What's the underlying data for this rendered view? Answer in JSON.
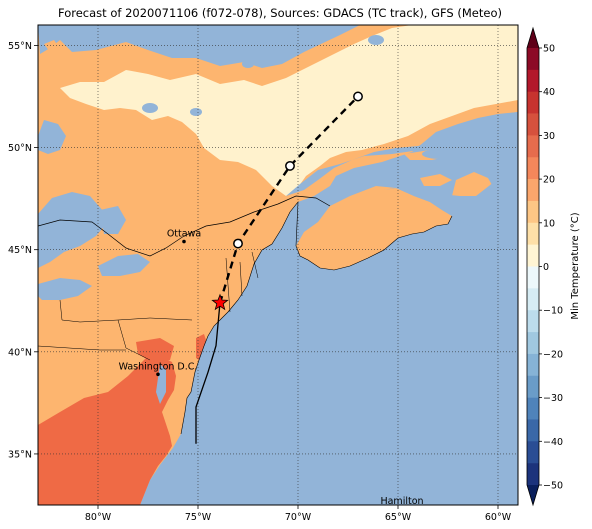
{
  "title": "Forecast of 2020071106 (f072-078), Sources: GDACS (TC track), GFS (Meteo)",
  "map": {
    "lon_range": [
      -83,
      -59
    ],
    "lat_range": [
      32.5,
      56
    ],
    "gridlines": true,
    "x_ticks": [
      {
        "lon": -80,
        "label": "80°W"
      },
      {
        "lon": -75,
        "label": "75°W"
      },
      {
        "lon": -70,
        "label": "70°W"
      },
      {
        "lon": -65,
        "label": "65°W"
      },
      {
        "lon": -60,
        "label": "60°W"
      }
    ],
    "y_ticks": [
      {
        "lat": 55,
        "label": "55°N"
      },
      {
        "lat": 50,
        "label": "50°N"
      },
      {
        "lat": 45,
        "label": "45°N"
      },
      {
        "lat": 40,
        "label": "40°N"
      },
      {
        "lat": 35,
        "label": "35°N"
      }
    ],
    "cities": [
      {
        "name": "Ottawa",
        "lon": -75.7,
        "lat": 45.4
      },
      {
        "name": "Washington D.C.",
        "lon": -77.0,
        "lat": 38.9
      },
      {
        "name": "Hamilton",
        "lon": -64.8,
        "lat": 32.3
      }
    ],
    "track_observed": [
      {
        "lon": -75.1,
        "lat": 35.5
      },
      {
        "lon": -75.1,
        "lat": 37.3
      },
      {
        "lon": -74.5,
        "lat": 39.0
      },
      {
        "lon": -74.1,
        "lat": 40.3
      },
      {
        "lon": -73.9,
        "lat": 42.4
      }
    ],
    "track_forecast": [
      {
        "lon": -73.9,
        "lat": 42.4
      },
      {
        "lon": -73.0,
        "lat": 45.3
      },
      {
        "lon": -70.4,
        "lat": 49.1
      },
      {
        "lon": -67.0,
        "lat": 52.5
      }
    ],
    "forecast_points": [
      {
        "lon": -73.0,
        "lat": 45.3
      },
      {
        "lon": -70.4,
        "lat": 49.1
      },
      {
        "lon": -67.0,
        "lat": 52.5
      }
    ],
    "current_position": {
      "lon": -73.9,
      "lat": 42.4
    },
    "colors": {
      "ocean": "#92b4d8",
      "zone_0_10": "#fff2cd",
      "zone_10_20": "#fdb56f",
      "zone_20_30": "#ef6a45",
      "zone_neg10_0": "#e3f1f7",
      "track": "#000000",
      "star": "#ff0000"
    }
  },
  "colorbar": {
    "label": "Min Temperature (°C)",
    "range": [
      -50,
      50
    ],
    "ticks": [
      {
        "value": 50,
        "label": "50"
      },
      {
        "value": 40,
        "label": "40"
      },
      {
        "value": 30,
        "label": "30"
      },
      {
        "value": 20,
        "label": "20"
      },
      {
        "value": 10,
        "label": "10"
      },
      {
        "value": 0,
        "label": "0"
      },
      {
        "value": -10,
        "label": "−10"
      },
      {
        "value": -20,
        "label": "−20"
      },
      {
        "value": -30,
        "label": "−30"
      },
      {
        "value": -40,
        "label": "−40"
      },
      {
        "value": -50,
        "label": "−50"
      }
    ],
    "bands": [
      {
        "from": 45,
        "to": 50,
        "color": "#8c0a26"
      },
      {
        "from": 40,
        "to": 45,
        "color": "#b2182b"
      },
      {
        "from": 35,
        "to": 40,
        "color": "#c7332f"
      },
      {
        "from": 30,
        "to": 35,
        "color": "#d6513d"
      },
      {
        "from": 25,
        "to": 30,
        "color": "#e66c4d"
      },
      {
        "from": 20,
        "to": 25,
        "color": "#f4875b"
      },
      {
        "from": 15,
        "to": 20,
        "color": "#fba66c"
      },
      {
        "from": 10,
        "to": 15,
        "color": "#fdc685"
      },
      {
        "from": 5,
        "to": 10,
        "color": "#fee0a8"
      },
      {
        "from": 0,
        "to": 5,
        "color": "#fff5d4"
      },
      {
        "from": -5,
        "to": 0,
        "color": "#edf8fb"
      },
      {
        "from": -10,
        "to": -5,
        "color": "#d6ecf4"
      },
      {
        "from": -15,
        "to": -10,
        "color": "#bcdcec"
      },
      {
        "from": -20,
        "to": -15,
        "color": "#a0c8e0"
      },
      {
        "from": -25,
        "to": -20,
        "color": "#86b3d6"
      },
      {
        "from": -30,
        "to": -25,
        "color": "#6a9cc8"
      },
      {
        "from": -35,
        "to": -30,
        "color": "#4f83ba"
      },
      {
        "from": -40,
        "to": -35,
        "color": "#3a68a8"
      },
      {
        "from": -45,
        "to": -40,
        "color": "#2a4d94"
      },
      {
        "from": -50,
        "to": -45,
        "color": "#1c337c"
      }
    ],
    "extend_top_color": "#5e0018",
    "extend_bottom_color": "#0a1f5c"
  }
}
